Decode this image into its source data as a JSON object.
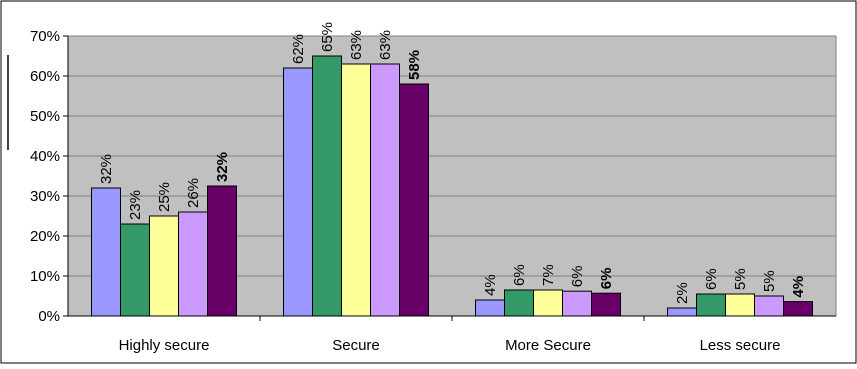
{
  "chart_data": {
    "type": "bar",
    "title": "",
    "xlabel": "",
    "ylabel": "",
    "ylim": [
      0,
      70
    ],
    "yticks": [
      "0%",
      "10%",
      "20%",
      "30%",
      "40%",
      "50%",
      "60%",
      "70%"
    ],
    "grid": true,
    "legend": "none",
    "categories": [
      "Highly secure",
      "Secure",
      "More Secure",
      "Less secure"
    ],
    "series": [
      {
        "color": "#9999ff",
        "values": [
          32,
          62,
          4,
          2
        ],
        "labels": [
          "32%",
          "62%",
          "4%",
          "2%"
        ],
        "bold": false
      },
      {
        "color": "#339966",
        "values": [
          23,
          65,
          6.5,
          5.5
        ],
        "labels": [
          "23%",
          "65%",
          "6%",
          "6%"
        ],
        "bold": false
      },
      {
        "color": "#ffff99",
        "values": [
          25,
          63,
          6.5,
          5.5
        ],
        "labels": [
          "25%",
          "63%",
          "7%",
          "5%"
        ],
        "bold": false
      },
      {
        "color": "#cc99ff",
        "values": [
          26,
          63,
          6.2,
          5
        ],
        "labels": [
          "26%",
          "63%",
          "6%",
          "5%"
        ],
        "bold": false
      },
      {
        "color": "#660066",
        "values": [
          32.5,
          58,
          5.7,
          3.6
        ],
        "labels": [
          "32%",
          "58%",
          "6%",
          "4%"
        ],
        "bold": true
      }
    ]
  },
  "colors": {
    "plot_background": "#c0c0c0",
    "gridline": "#808080",
    "bar_outline": "#000000"
  }
}
